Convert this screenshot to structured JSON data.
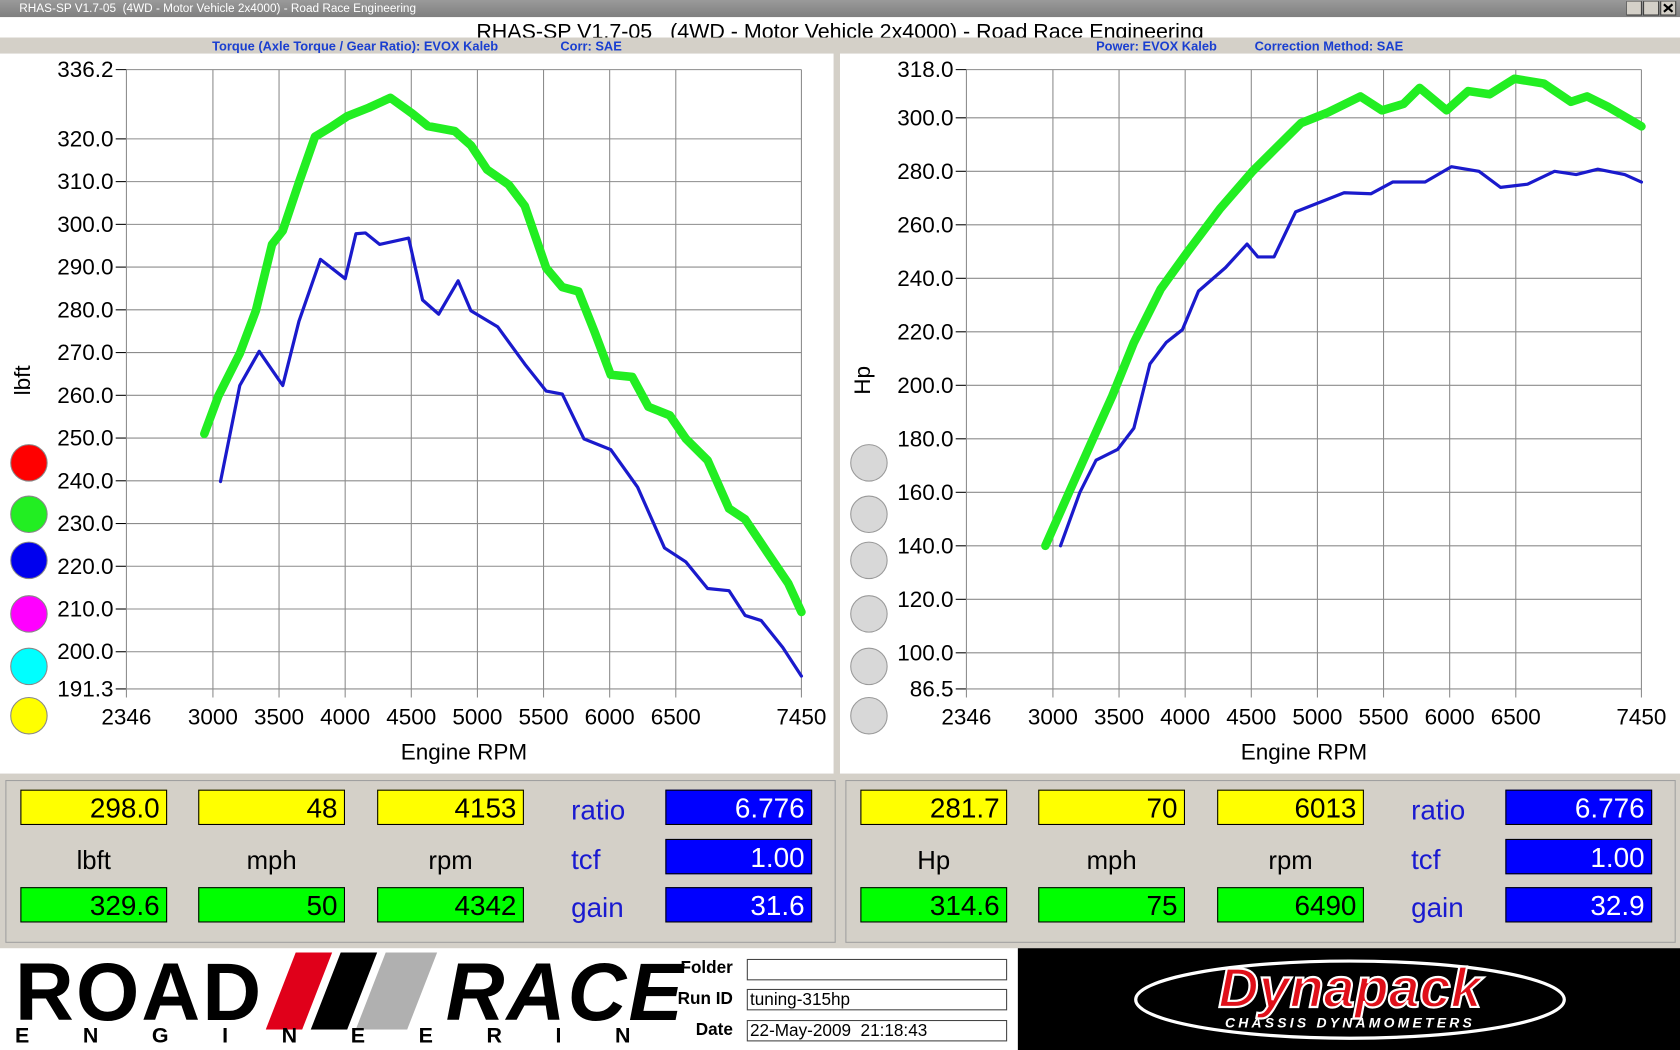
{
  "window": {
    "title": "RHAS-SP V1.7-05  (4WD - Motor Vehicle 2x4000) - Road Race Engineering",
    "banner": "RHAS-SP V1.7-05   (4WD - Motor Vehicle 2x4000) - Road Race Engineering"
  },
  "chart_data": [
    {
      "type": "line",
      "subtitle": "Torque (Axle Torque / Gear Ratio): EVOX Kaleb",
      "note": "Corr: SAE",
      "xlabel": "Engine RPM",
      "ylabel": "lbft",
      "xlim": [
        2346,
        7450
      ],
      "xticks": [
        2346,
        3000,
        3500,
        4000,
        4500,
        5000,
        5500,
        6000,
        6500,
        7450
      ],
      "ylim": [
        191.3,
        336.2
      ],
      "yticks": [
        191.3,
        {
          "value": 200,
          "label": "200.0"
        },
        {
          "value": 210,
          "label": "210.0"
        },
        {
          "value": 220,
          "label": "220.0"
        },
        {
          "value": 230,
          "label": "230.0"
        },
        {
          "value": 240,
          "label": "240.0"
        },
        {
          "value": 250,
          "label": "250.0"
        },
        {
          "value": 260,
          "label": "260.0"
        },
        {
          "value": 270,
          "label": "270.0"
        },
        {
          "value": 280,
          "label": "280.0"
        },
        {
          "value": 290,
          "label": "290.0"
        },
        {
          "value": 300,
          "label": "300.0"
        },
        {
          "value": 310,
          "label": "310.0"
        },
        {
          "value": 320,
          "label": "320.0"
        },
        336.2
      ],
      "grid": true,
      "series": [
        {
          "color": "#22ee22",
          "x": [
            2935,
            3040,
            3203,
            3325,
            3447,
            3528,
            3650,
            3772,
            3894,
            4016,
            4179,
            4342,
            4504,
            4626,
            4829,
            4951,
            5073,
            5236,
            5358,
            5520,
            5642,
            5764,
            5886,
            6008,
            6171,
            6293,
            6455,
            6577,
            6740,
            6902,
            7024,
            7187,
            7350,
            7450
          ],
          "values": [
            251,
            259.8,
            269.8,
            279.8,
            295.3,
            298.5,
            309.8,
            320.5,
            322.8,
            325.3,
            327.3,
            329.6,
            326,
            323,
            321.8,
            318.5,
            312.8,
            309.3,
            304.3,
            289.8,
            285.3,
            284.3,
            274.8,
            264.8,
            264.3,
            257.3,
            255.3,
            249.8,
            244.8,
            233.5,
            231,
            223.5,
            216,
            209.3
          ]
        },
        {
          "color": "#1a1acc",
          "x": [
            3057,
            3203,
            3350,
            3528,
            3650,
            3813,
            4000,
            4081,
            4153,
            4260,
            4480,
            4585,
            4707,
            4854,
            4951,
            5154,
            5358,
            5520,
            5642,
            5805,
            6008,
            6211,
            6415,
            6577,
            6740,
            6902,
            7024,
            7146,
            7309,
            7450
          ],
          "values": [
            239.8,
            262.3,
            270.3,
            262.3,
            277.3,
            291.8,
            287.3,
            297.8,
            298,
            295.3,
            296.8,
            282.3,
            279,
            286.8,
            279.8,
            276,
            267.3,
            261,
            260.3,
            249.8,
            247.3,
            238.5,
            224.3,
            221,
            214.8,
            214.3,
            208.5,
            207.3,
            201,
            194.3
          ]
        }
      ]
    },
    {
      "type": "line",
      "subtitle": "Power: EVOX Kaleb",
      "note": "Correction Method: SAE",
      "xlabel": "Engine RPM",
      "ylabel": "Hp",
      "xlim": [
        2346,
        7450
      ],
      "xticks": [
        2346,
        3000,
        3500,
        4000,
        4500,
        5000,
        5500,
        6000,
        6500,
        7450
      ],
      "ylim": [
        86.5,
        318.0
      ],
      "yticks": [
        86.5,
        {
          "value": 100,
          "label": "100.0"
        },
        {
          "value": 120,
          "label": "120.0"
        },
        {
          "value": 140,
          "label": "140.0"
        },
        {
          "value": 160,
          "label": "160.0"
        },
        {
          "value": 180,
          "label": "180.0"
        },
        {
          "value": 200,
          "label": "200.0"
        },
        {
          "value": 220,
          "label": "220.0"
        },
        {
          "value": 240,
          "label": "240.0"
        },
        {
          "value": 260,
          "label": "260.0"
        },
        {
          "value": 280,
          "label": "280.0"
        },
        {
          "value": 300,
          "label": "300.0"
        },
        {
          "value": 318,
          "label": "318.0"
        }
      ],
      "grid": true,
      "series": [
        {
          "color": "#22ee22",
          "x": [
            2943,
            3122,
            3285,
            3449,
            3612,
            3816,
            4020,
            4264,
            4509,
            4672,
            4876,
            5080,
            5325,
            5488,
            5651,
            5773,
            5977,
            6140,
            6303,
            6490,
            6713,
            6917,
            7039,
            7202,
            7450
          ],
          "values": [
            140,
            160,
            178,
            196,
            216,
            236,
            250,
            266,
            280,
            288,
            298,
            302,
            308,
            302.8,
            305.2,
            311.2,
            302.8,
            310,
            308.8,
            314.6,
            312.8,
            306,
            308,
            304,
            296.8
          ]
        },
        {
          "color": "#1a1acc",
          "x": [
            3057,
            3204,
            3326,
            3489,
            3612,
            3734,
            3856,
            3979,
            4101,
            4305,
            4468,
            4550,
            4672,
            4835,
            4998,
            5202,
            5406,
            5569,
            5814,
            6013,
            6222,
            6385,
            6589,
            6793,
            6957,
            7120,
            7324,
            7450
          ],
          "values": [
            140,
            160,
            172,
            176,
            184,
            208,
            216,
            220.8,
            235.2,
            244,
            252.8,
            248,
            248,
            264.8,
            268,
            272,
            271.6,
            276,
            276,
            281.7,
            280,
            274,
            275.2,
            280,
            278.8,
            280.8,
            278.8,
            276
          ]
        }
      ]
    }
  ],
  "readouts": [
    {
      "run1": [
        "298.0",
        "48",
        "4153"
      ],
      "units": [
        "lbft",
        "mph",
        "rpm"
      ],
      "run2": [
        "329.6",
        "50",
        "4342"
      ],
      "factors": [
        {
          "label": "ratio",
          "value": "6.776"
        },
        {
          "label": "tcf",
          "value": "1.00"
        },
        {
          "label": "gain",
          "value": "31.6"
        }
      ]
    },
    {
      "run1": [
        "281.7",
        "70",
        "6013"
      ],
      "units": [
        "Hp",
        "mph",
        "rpm"
      ],
      "run2": [
        "314.6",
        "75",
        "6490"
      ],
      "factors": [
        {
          "label": "ratio",
          "value": "6.776"
        },
        {
          "label": "tcf",
          "value": "1.00"
        },
        {
          "label": "gain",
          "value": "32.9"
        }
      ]
    }
  ],
  "footer": {
    "logo": {
      "road": "ROAD",
      "race": "RACE",
      "engineering": "ENGINEERING"
    },
    "fields": [
      {
        "label": "Folder"
      },
      {
        "label": "Run ID",
        "value": "tuning-315hp"
      },
      {
        "label": "Date",
        "value": "22-May-2009  21:18:43"
      }
    ],
    "brand": "Dynapack",
    "brand_sub": "CHASSIS DYNAMOMETERS"
  }
}
